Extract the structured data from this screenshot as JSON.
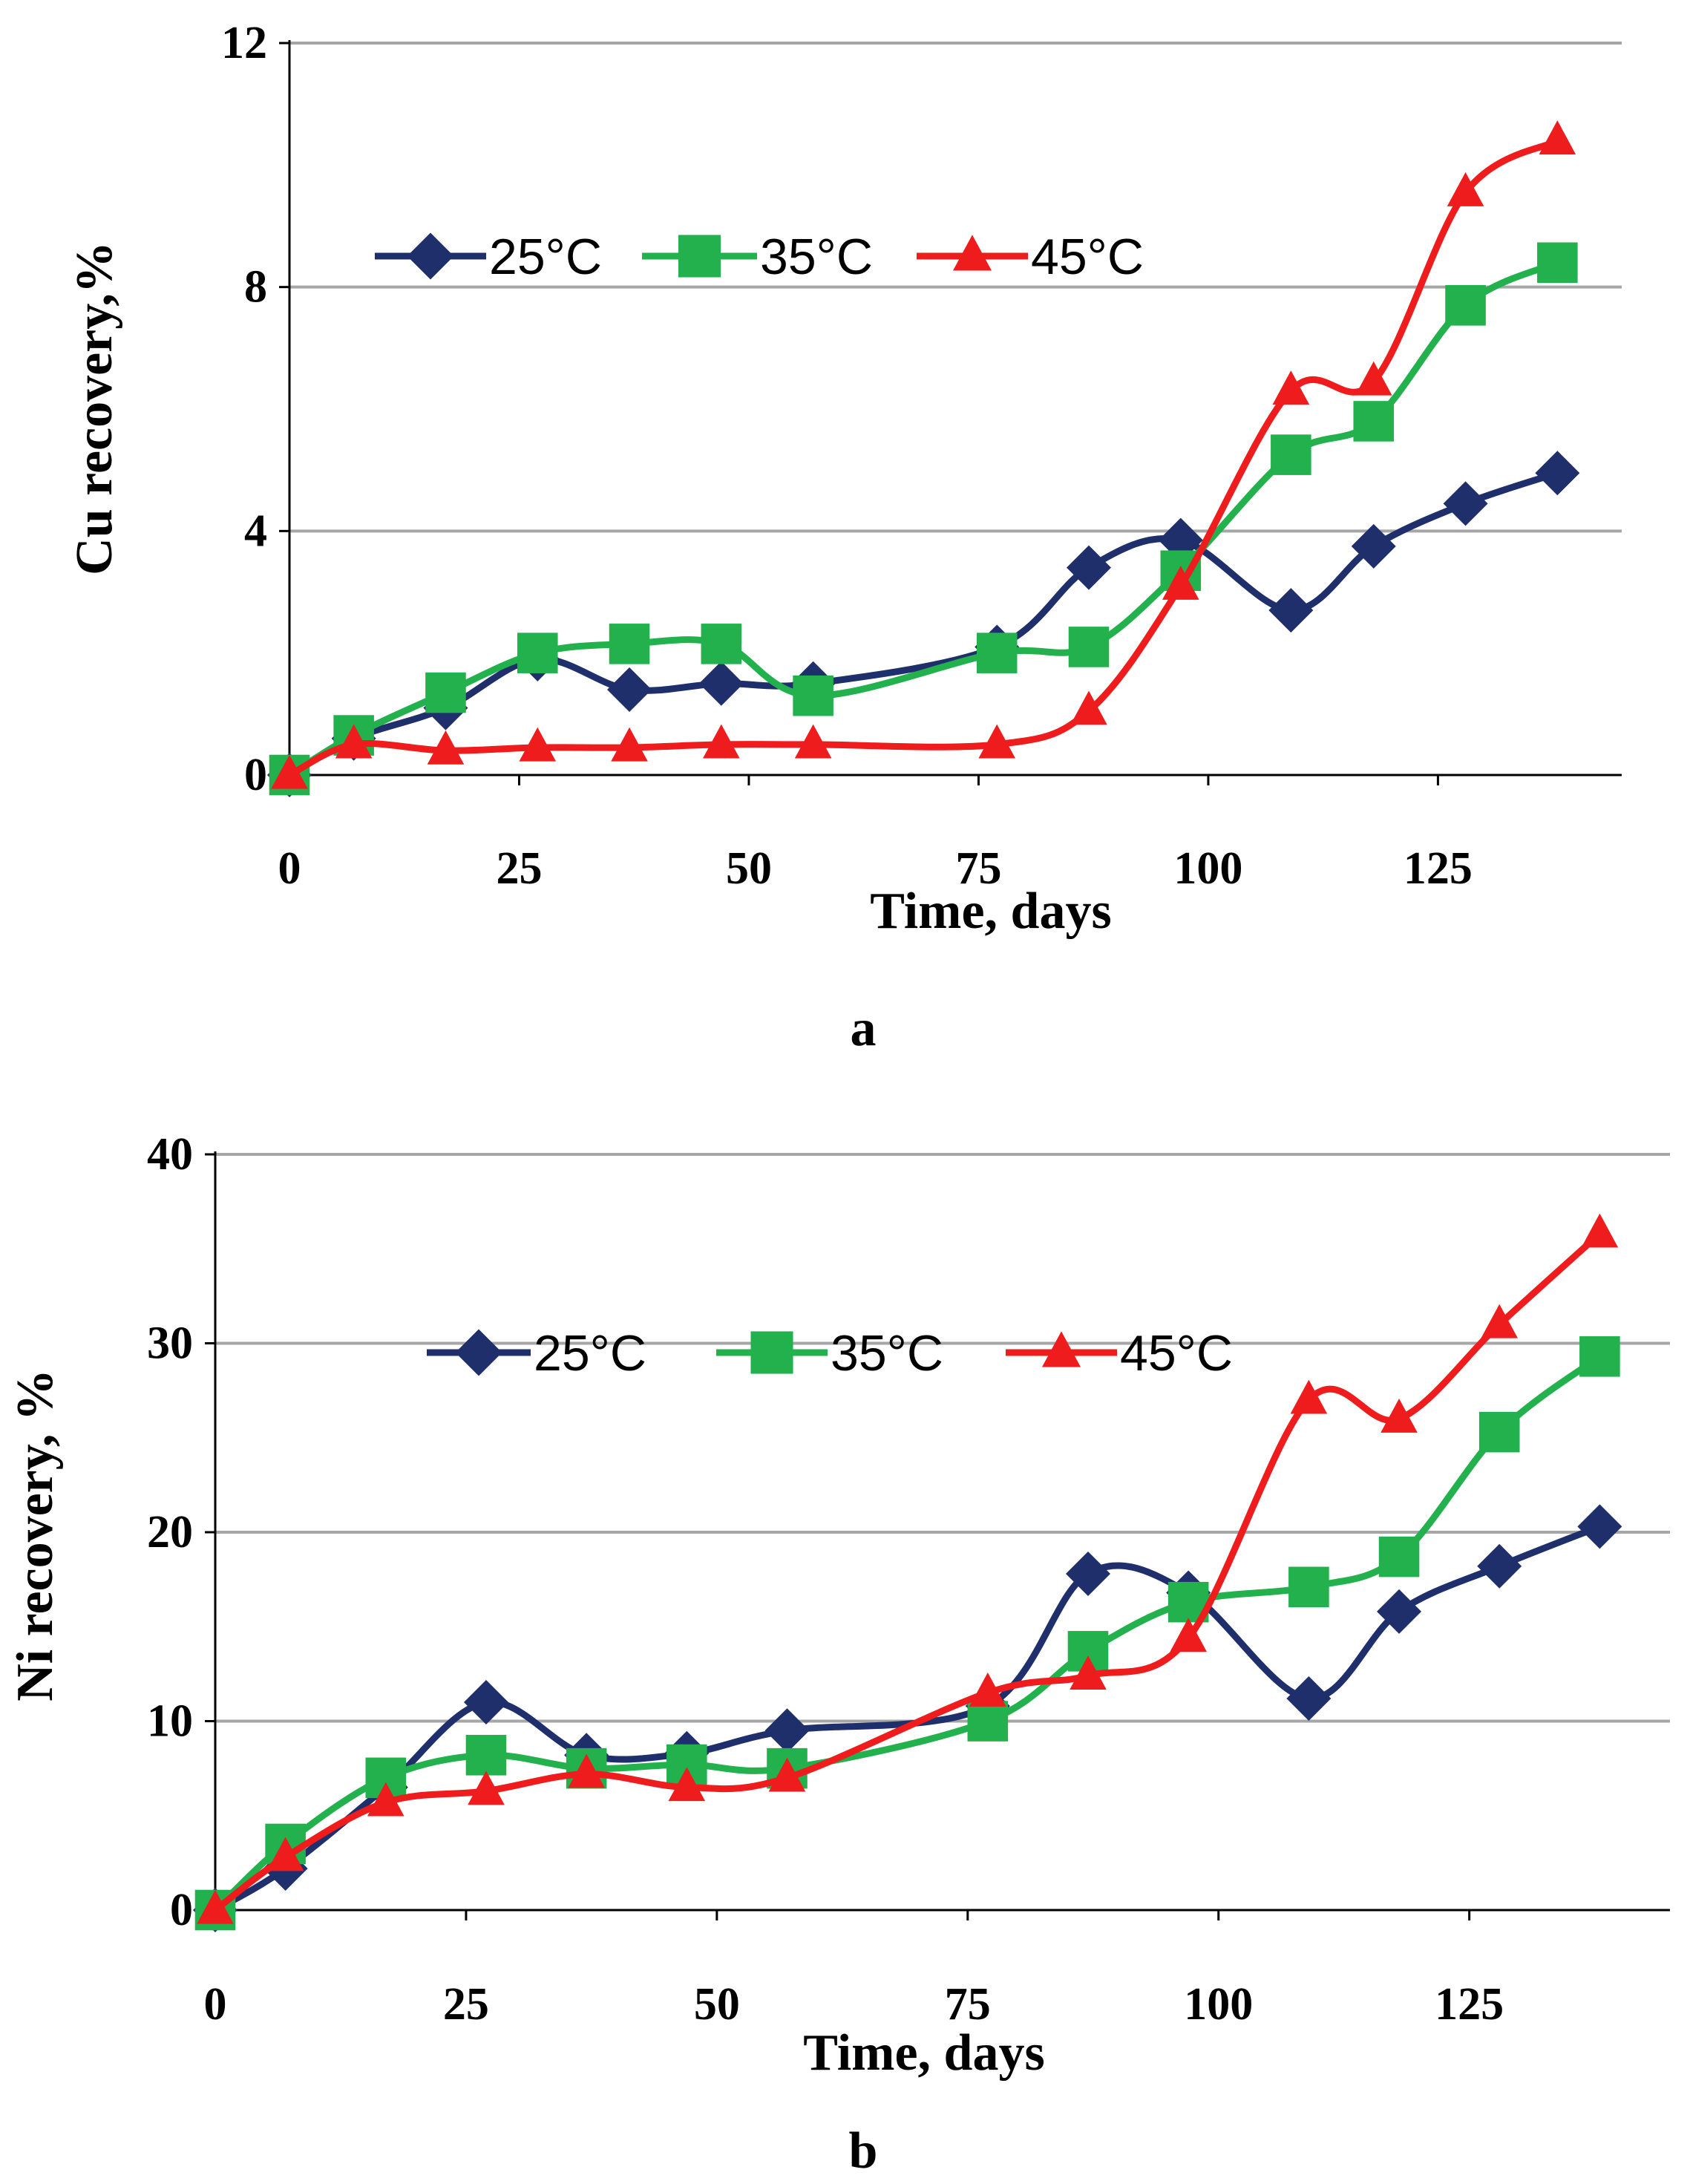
{
  "chart_data": [
    {
      "type": "line",
      "panel_label": "a",
      "xlabel": "Time, days",
      "ylabel": "Cu recovery,%",
      "xlim": [
        0,
        145
      ],
      "ylim": [
        0,
        12
      ],
      "xticks": [
        "0",
        "25",
        "50",
        "75",
        "100",
        "125"
      ],
      "yticks": [
        "0",
        "4",
        "8",
        "12"
      ],
      "grid": true,
      "legend_position": "top-left",
      "series": [
        {
          "name": "25°C",
          "marker": "diamond",
          "color": "#1f2f6b",
          "x": [
            0,
            7,
            17,
            27,
            37,
            47,
            57,
            77,
            87,
            97,
            109,
            118,
            128,
            138
          ],
          "y": [
            0,
            0.6,
            1.1,
            1.9,
            1.4,
            1.5,
            1.5,
            2.1,
            3.4,
            3.85,
            2.7,
            3.75,
            4.45,
            4.95
          ]
        },
        {
          "name": "35°C",
          "marker": "square",
          "color": "#22b14c",
          "x": [
            0,
            7,
            17,
            27,
            37,
            47,
            57,
            77,
            87,
            97,
            109,
            118,
            128,
            138
          ],
          "y": [
            0,
            0.65,
            1.35,
            2.0,
            2.15,
            2.15,
            1.3,
            2.0,
            2.1,
            3.35,
            5.25,
            5.8,
            7.7,
            8.4
          ]
        },
        {
          "name": "45°C",
          "marker": "triangle",
          "color": "#ee1c1c",
          "x": [
            0,
            7,
            17,
            27,
            37,
            47,
            57,
            77,
            87,
            97,
            109,
            118,
            128,
            138
          ],
          "y": [
            0,
            0.5,
            0.4,
            0.45,
            0.45,
            0.5,
            0.5,
            0.5,
            1.05,
            3.1,
            6.3,
            6.45,
            9.55,
            10.4
          ]
        }
      ]
    },
    {
      "type": "line",
      "panel_label": "b",
      "xlabel": "Time, days",
      "ylabel": "Ni recovery, %",
      "xlim": [
        0,
        145
      ],
      "ylim": [
        0,
        40
      ],
      "xticks": [
        "0",
        "25",
        "50",
        "75",
        "100",
        "125"
      ],
      "yticks": [
        "0",
        "10",
        "20",
        "30",
        "40"
      ],
      "grid": true,
      "legend_position": "top-left",
      "series": [
        {
          "name": "25°C",
          "marker": "diamond",
          "color": "#1f2f6b",
          "x": [
            0,
            7,
            17,
            27,
            37,
            47,
            57,
            77,
            87,
            97,
            109,
            118,
            128,
            138
          ],
          "y": [
            0,
            2.2,
            6.5,
            11.0,
            8.2,
            8.3,
            9.5,
            10.8,
            17.8,
            16.8,
            11.2,
            15.8,
            18.2,
            20.3
          ]
        },
        {
          "name": "35°C",
          "marker": "square",
          "color": "#22b14c",
          "x": [
            0,
            7,
            17,
            27,
            37,
            47,
            57,
            77,
            87,
            97,
            109,
            118,
            128,
            138
          ],
          "y": [
            0,
            3.5,
            7.0,
            8.2,
            7.5,
            7.7,
            7.5,
            10.0,
            13.7,
            16.3,
            17.1,
            18.7,
            25.3,
            29.3
          ]
        },
        {
          "name": "45°C",
          "marker": "triangle",
          "color": "#ee1c1c",
          "x": [
            0,
            7,
            17,
            27,
            37,
            47,
            57,
            77,
            87,
            97,
            109,
            118,
            128,
            138
          ],
          "y": [
            0,
            2.8,
            5.7,
            6.3,
            7.2,
            6.5,
            7.0,
            11.5,
            12.4,
            14.4,
            27.0,
            26.0,
            31.0,
            35.8
          ]
        }
      ]
    }
  ]
}
